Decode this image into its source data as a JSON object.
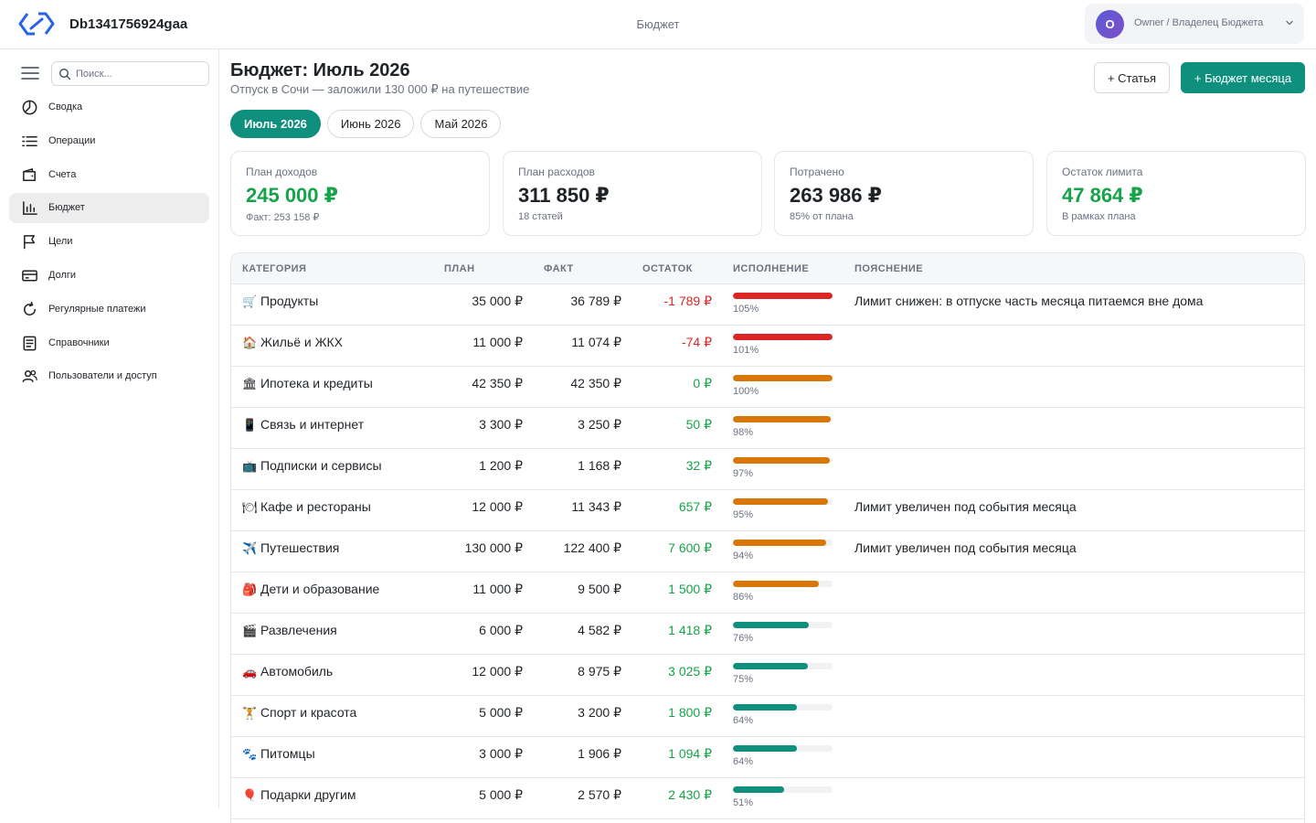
{
  "app": {
    "name": "Db1341756924gaa",
    "section": "Бюджет"
  },
  "user": {
    "initial": "O",
    "label": "Owner / Владелец Бюджета"
  },
  "search": {
    "placeholder": "Поиск..."
  },
  "nav": [
    {
      "label": "Сводка",
      "icon": "pie-chart-icon",
      "active": false
    },
    {
      "label": "Операции",
      "icon": "list-icon",
      "active": false
    },
    {
      "label": "Счета",
      "icon": "wallet-icon",
      "active": false
    },
    {
      "label": "Бюджет",
      "icon": "bar-chart-icon",
      "active": true
    },
    {
      "label": "Цели",
      "icon": "flag-icon",
      "active": false
    },
    {
      "label": "Долги",
      "icon": "credit-card-icon",
      "active": false
    },
    {
      "label": "Регулярные платежи",
      "icon": "refresh-icon",
      "active": false
    },
    {
      "label": "Справочники",
      "icon": "book-icon",
      "active": false
    },
    {
      "label": "Пользователи и доступ",
      "icon": "users-icon",
      "active": false
    }
  ],
  "page": {
    "title": "Бюджет: Июль 2026",
    "subtitle": "Отпуск в Сочи — заложили 130 000 ₽ на путешествие",
    "add_item_label": "+ Статья",
    "add_budget_label": "+ Бюджет месяца"
  },
  "months": [
    {
      "label": "Июль 2026",
      "active": true
    },
    {
      "label": "Июнь 2026",
      "active": false
    },
    {
      "label": "Май 2026",
      "active": false
    }
  ],
  "cards": [
    {
      "label": "План доходов",
      "value": "245 000 ₽",
      "note": "Факт: 253 158 ₽",
      "green": true
    },
    {
      "label": "План расходов",
      "value": "311 850 ₽",
      "note": "18 статей",
      "green": false
    },
    {
      "label": "Потрачено",
      "value": "263 986 ₽",
      "note": "85% от плана",
      "green": false
    },
    {
      "label": "Остаток лимита",
      "value": "47 864 ₽",
      "note": "В рамках плана",
      "green": true
    }
  ],
  "table": {
    "headers": {
      "category": "Категория",
      "plan": "План",
      "fact": "Факт",
      "remaining": "Остаток",
      "progress": "Исполнение",
      "note": "Пояснение"
    },
    "colors": {
      "over": "#dc2626",
      "warn": "#d97706",
      "ok": "#0f8f7e"
    },
    "rows": [
      {
        "emoji": "🛒",
        "name": "Продукты",
        "plan": "35 000 ₽",
        "fact": "36 789 ₽",
        "remaining": "-1 789 ₽",
        "negative": true,
        "pct": 105,
        "pct_label": "105%",
        "status": "over",
        "note": "Лимит снижен: в отпуске часть месяца питаемся вне дома"
      },
      {
        "emoji": "🏠",
        "name": "Жильё и ЖКХ",
        "plan": "11 000 ₽",
        "fact": "11 074 ₽",
        "remaining": "-74 ₽",
        "negative": true,
        "pct": 101,
        "pct_label": "101%",
        "status": "over",
        "note": ""
      },
      {
        "emoji": "🏛",
        "name": "Ипотека и кредиты",
        "plan": "42 350 ₽",
        "fact": "42 350 ₽",
        "remaining": "0 ₽",
        "negative": false,
        "pct": 100,
        "pct_label": "100%",
        "status": "warn",
        "note": ""
      },
      {
        "emoji": "📱",
        "name": "Связь и интернет",
        "plan": "3 300 ₽",
        "fact": "3 250 ₽",
        "remaining": "50 ₽",
        "negative": false,
        "pct": 98,
        "pct_label": "98%",
        "status": "warn",
        "note": ""
      },
      {
        "emoji": "📺",
        "name": "Подписки и сервисы",
        "plan": "1 200 ₽",
        "fact": "1 168 ₽",
        "remaining": "32 ₽",
        "negative": false,
        "pct": 97,
        "pct_label": "97%",
        "status": "warn",
        "note": ""
      },
      {
        "emoji": "🍽",
        "name": "Кафе и рестораны",
        "plan": "12 000 ₽",
        "fact": "11 343 ₽",
        "remaining": "657 ₽",
        "negative": false,
        "pct": 95,
        "pct_label": "95%",
        "status": "warn",
        "note": "Лимит увеличен под события месяца"
      },
      {
        "emoji": "✈️",
        "name": "Путешествия",
        "plan": "130 000 ₽",
        "fact": "122 400 ₽",
        "remaining": "7 600 ₽",
        "negative": false,
        "pct": 94,
        "pct_label": "94%",
        "status": "warn",
        "note": "Лимит увеличен под события месяца"
      },
      {
        "emoji": "🎒",
        "name": "Дети и образование",
        "plan": "11 000 ₽",
        "fact": "9 500 ₽",
        "remaining": "1 500 ₽",
        "negative": false,
        "pct": 86,
        "pct_label": "86%",
        "status": "warn",
        "note": ""
      },
      {
        "emoji": "🎬",
        "name": "Развлечения",
        "plan": "6 000 ₽",
        "fact": "4 582 ₽",
        "remaining": "1 418 ₽",
        "negative": false,
        "pct": 76,
        "pct_label": "76%",
        "status": "ok",
        "note": ""
      },
      {
        "emoji": "🚗",
        "name": "Автомобиль",
        "plan": "12 000 ₽",
        "fact": "8 975 ₽",
        "remaining": "3 025 ₽",
        "negative": false,
        "pct": 75,
        "pct_label": "75%",
        "status": "ok",
        "note": ""
      },
      {
        "emoji": "🏋",
        "name": "Спорт и красота",
        "plan": "5 000 ₽",
        "fact": "3 200 ₽",
        "remaining": "1 800 ₽",
        "negative": false,
        "pct": 64,
        "pct_label": "64%",
        "status": "ok",
        "note": ""
      },
      {
        "emoji": "🐾",
        "name": "Питомцы",
        "plan": "3 000 ₽",
        "fact": "1 906 ₽",
        "remaining": "1 094 ₽",
        "negative": false,
        "pct": 64,
        "pct_label": "64%",
        "status": "ok",
        "note": ""
      },
      {
        "emoji": "🎈",
        "name": "Подарки другим",
        "plan": "5 000 ₽",
        "fact": "2 570 ₽",
        "remaining": "2 430 ₽",
        "negative": false,
        "pct": 51,
        "pct_label": "51%",
        "status": "ok",
        "note": ""
      }
    ]
  }
}
